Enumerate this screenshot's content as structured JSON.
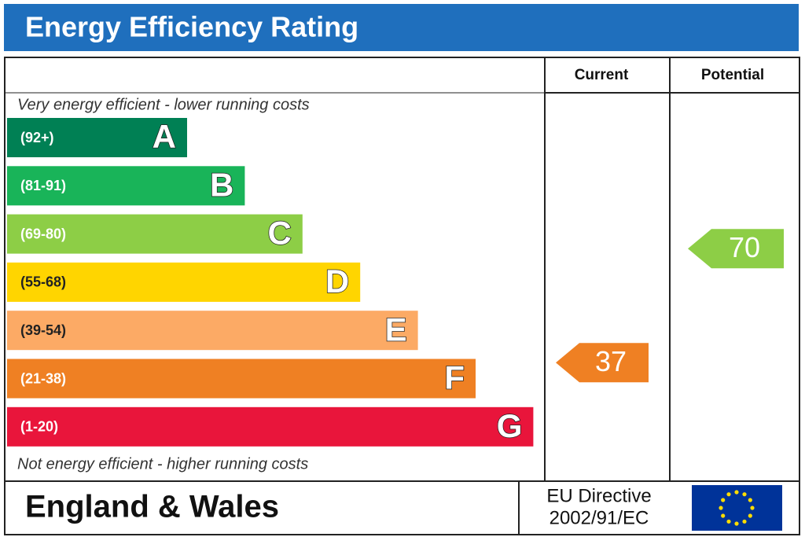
{
  "header": {
    "title": "Energy Efficiency Rating"
  },
  "columns": {
    "current": "Current",
    "potential": "Potential"
  },
  "top_note": "Very energy efficient - lower running costs",
  "bottom_note": "Not energy efficient - higher running costs",
  "bands": [
    {
      "range": "(92+)",
      "letter": "A",
      "color": "#008054"
    },
    {
      "range": "(81-91)",
      "letter": "B",
      "color": "#19b459"
    },
    {
      "range": "(69-80)",
      "letter": "C",
      "color": "#8dce46"
    },
    {
      "range": "(55-68)",
      "letter": "D",
      "color": "#ffd500"
    },
    {
      "range": "(39-54)",
      "letter": "E",
      "color": "#fcaa65"
    },
    {
      "range": "(21-38)",
      "letter": "F",
      "color": "#ef8023"
    },
    {
      "range": "(1-20)",
      "letter": "G",
      "color": "#e9153b"
    }
  ],
  "current": 37,
  "potential": 70,
  "footer": {
    "region": "England & Wales",
    "directive": "EU Directive",
    "directive_number": "2002/91/EC"
  }
}
